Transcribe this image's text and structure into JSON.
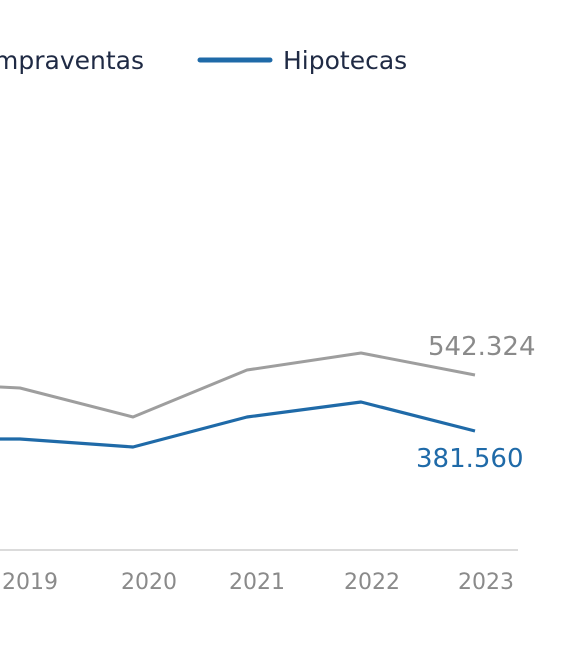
{
  "chart_data": {
    "type": "line",
    "categories": [
      "2019",
      "2020",
      "2021",
      "2022",
      "2023"
    ],
    "legend": {
      "placement": "top",
      "entries": [
        "mpraventas",
        "Hipotecas"
      ]
    },
    "series": [
      {
        "name": "mpraventas",
        "color": "#9e9e9e",
        "values": [
          528000,
          517000,
          535000,
          543000,
          542324
        ],
        "end_label": "542.324"
      },
      {
        "name": "Hipotecas",
        "color": "#1f6aa8",
        "values": [
          402000,
          396000,
          410000,
          418000,
          381560
        ],
        "end_label": "381.560"
      }
    ],
    "axis": {
      "color": "#cfcfcf",
      "grid": false
    }
  }
}
